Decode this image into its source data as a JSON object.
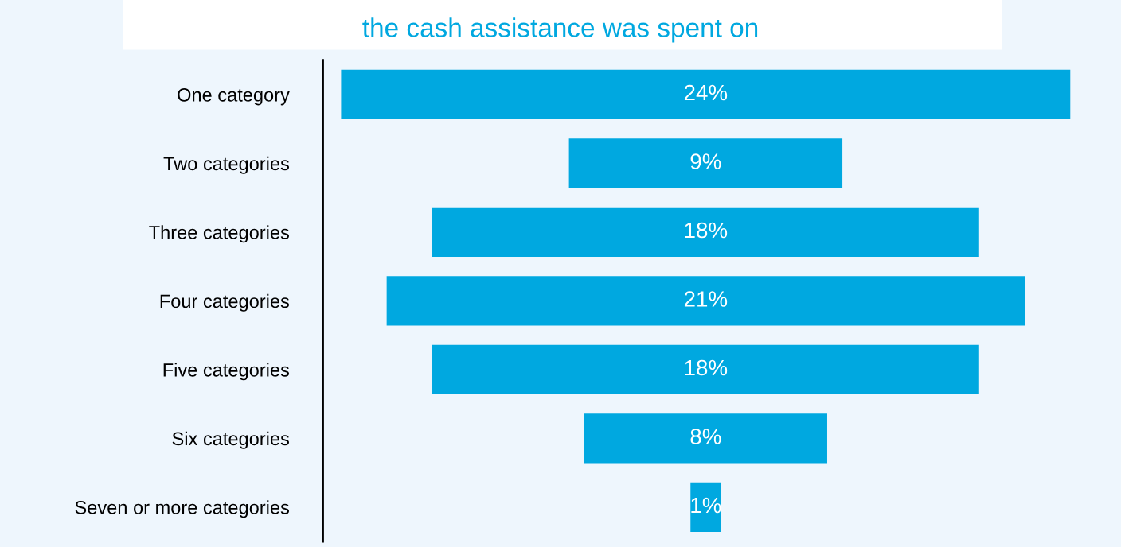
{
  "chart_data": {
    "type": "other",
    "title": "the cash assistance was spent on",
    "categories": [
      "One category",
      "Two categories",
      "Three categories",
      "Four categories",
      "Five categories",
      "Six categories",
      "Seven or more categories"
    ],
    "values": [
      24,
      9,
      18,
      21,
      18,
      8,
      1
    ],
    "value_labels": [
      "24%",
      "9%",
      "18%",
      "21%",
      "18%",
      "8%",
      "1%"
    ],
    "color": "#00a8e0"
  }
}
